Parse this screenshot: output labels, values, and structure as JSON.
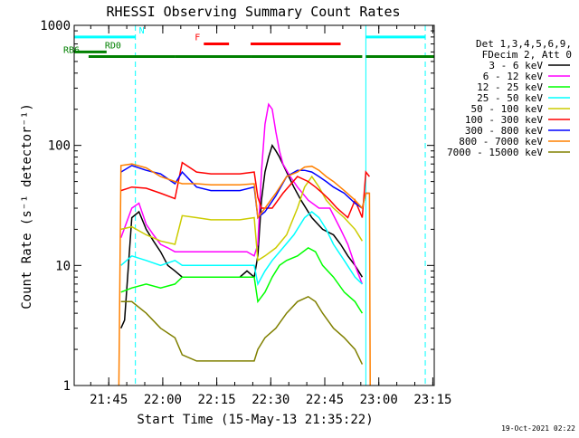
{
  "chart_data": {
    "type": "line",
    "title": "RHESSI Observing Summary Count Rates",
    "xlabel": "Start Time (15-May-13 21:35:22)",
    "ylabel": "Count Rate (s⁻¹ detector⁻¹)",
    "x_unit": "minutes after 21:35:22",
    "xlim": [
      0,
      100
    ],
    "ylim": [
      1,
      1000
    ],
    "y_scale": "log",
    "x_ticks": [
      {
        "x": 9.6,
        "label": "21:45"
      },
      {
        "x": 24.6,
        "label": "22:00"
      },
      {
        "x": 39.6,
        "label": "22:15"
      },
      {
        "x": 54.6,
        "label": "22:30"
      },
      {
        "x": 69.6,
        "label": "22:45"
      },
      {
        "x": 84.6,
        "label": "23:00"
      },
      {
        "x": 99.6,
        "label": "23:15"
      }
    ],
    "y_ticks": [
      {
        "y": 1,
        "label": "1"
      },
      {
        "y": 10,
        "label": "10"
      },
      {
        "y": 100,
        "label": "100"
      },
      {
        "y": 1000,
        "label": "1000"
      }
    ],
    "legend_position": "right",
    "legend_header": [
      "Det 1,3,4,5,6,9,",
      "FDecim 2, Att 0"
    ],
    "series": [
      {
        "name": "3 - 6 keV",
        "color": "#000000",
        "x": [
          13,
          14,
          16,
          18,
          20,
          22,
          24,
          26,
          28,
          30,
          34,
          38,
          42,
          46,
          48,
          50,
          51,
          52,
          53,
          54,
          55,
          56,
          57,
          59,
          61,
          63,
          66,
          69,
          72,
          74,
          76,
          78,
          80
        ],
        "y": [
          3,
          3.5,
          25,
          28,
          20,
          16,
          13,
          10,
          9,
          8,
          8,
          8,
          8,
          8,
          9,
          8,
          12,
          35,
          60,
          80,
          100,
          90,
          80,
          60,
          45,
          35,
          25,
          20,
          18,
          15,
          12,
          10,
          8
        ]
      },
      {
        "name": "6 - 12 keV",
        "color": "#ff00ff",
        "x": [
          13,
          16,
          18,
          20,
          22,
          24,
          26,
          28,
          30,
          34,
          38,
          42,
          46,
          48,
          50,
          51,
          52,
          53,
          54,
          55,
          56,
          57,
          58,
          60,
          62,
          65,
          68,
          71,
          74,
          76,
          78,
          80
        ],
        "y": [
          17,
          30,
          33,
          22,
          18,
          15,
          14,
          13,
          13,
          13,
          13,
          13,
          13,
          13,
          12,
          15,
          60,
          150,
          220,
          200,
          130,
          90,
          70,
          55,
          45,
          35,
          30,
          30,
          20,
          15,
          10,
          7
        ]
      },
      {
        "name": "12 - 25 keV",
        "color": "#00ff00",
        "x": [
          13,
          16,
          20,
          24,
          28,
          30,
          34,
          38,
          42,
          46,
          50,
          51,
          53,
          55,
          57,
          59,
          62,
          65,
          67,
          69,
          72,
          75,
          78,
          80
        ],
        "y": [
          6,
          6.5,
          7,
          6.5,
          7,
          8,
          8,
          8,
          8,
          8,
          8,
          5,
          6,
          8,
          10,
          11,
          12,
          14,
          13,
          10,
          8,
          6,
          5,
          4
        ]
      },
      {
        "name": "25 - 50 keV",
        "color": "#00ffff",
        "x": [
          13,
          16,
          20,
          24,
          28,
          30,
          34,
          38,
          42,
          46,
          50,
          51,
          53,
          55,
          58,
          61,
          64,
          66,
          68,
          70,
          72,
          75,
          78,
          80
        ],
        "y": [
          10,
          12,
          11,
          10,
          11,
          10,
          10,
          10,
          10,
          10,
          10,
          7,
          9,
          11,
          14,
          18,
          25,
          28,
          25,
          20,
          15,
          11,
          8,
          7
        ]
      },
      {
        "name": "50 - 100 keV",
        "color": "#cccc00",
        "x": [
          13,
          16,
          20,
          24,
          28,
          30,
          34,
          38,
          42,
          46,
          50,
          51,
          53,
          56,
          59,
          62,
          64,
          66,
          68,
          70,
          72,
          75,
          78,
          80
        ],
        "y": [
          20,
          21,
          18,
          16,
          15,
          26,
          25,
          24,
          24,
          24,
          25,
          11,
          12,
          14,
          18,
          30,
          45,
          55,
          45,
          35,
          30,
          25,
          20,
          16
        ]
      },
      {
        "name": "100 - 300 keV",
        "color": "#ff0000",
        "x": [
          13,
          16,
          20,
          24,
          28,
          30,
          34,
          38,
          42,
          46,
          50,
          51,
          52,
          55,
          58,
          62,
          65,
          67,
          69,
          71,
          73,
          76,
          78,
          80,
          81,
          82
        ],
        "y": [
          42,
          45,
          44,
          40,
          36,
          72,
          60,
          58,
          58,
          58,
          60,
          37,
          30,
          30,
          40,
          55,
          50,
          45,
          40,
          35,
          30,
          25,
          35,
          25,
          60,
          55
        ]
      },
      {
        "name": "300 - 800 keV",
        "color": "#0000ff",
        "x": [
          13,
          16,
          20,
          24,
          28,
          30,
          34,
          38,
          42,
          46,
          50,
          51,
          53,
          56,
          59,
          62,
          64,
          66,
          68,
          70,
          72,
          75,
          78,
          80,
          81,
          82
        ],
        "y": [
          60,
          68,
          62,
          58,
          48,
          60,
          45,
          42,
          42,
          42,
          45,
          25,
          28,
          38,
          55,
          62,
          62,
          60,
          55,
          50,
          45,
          40,
          33,
          30,
          40,
          40
        ]
      },
      {
        "name": "800 - 7000 keV",
        "color": "#ff8000",
        "x": [
          12.4,
          13,
          16,
          20,
          24,
          28,
          30,
          34,
          38,
          42,
          46,
          50,
          51,
          53,
          56,
          59,
          62,
          64,
          66,
          68,
          70,
          72,
          75,
          78,
          80,
          81,
          82,
          82.2
        ],
        "y": [
          1,
          68,
          70,
          65,
          55,
          50,
          48,
          48,
          47,
          47,
          47,
          48,
          25,
          30,
          40,
          55,
          60,
          66,
          67,
          62,
          55,
          50,
          42,
          35,
          30,
          40,
          40,
          1
        ]
      },
      {
        "name": "7000 - 15000 keV",
        "color": "#808000",
        "x": [
          13,
          16,
          20,
          24,
          28,
          30,
          34,
          38,
          42,
          46,
          50,
          51,
          53,
          56,
          59,
          62,
          65,
          67,
          69,
          72,
          75,
          78,
          80
        ],
        "y": [
          5,
          5,
          4,
          3,
          2.5,
          1.8,
          1.6,
          1.6,
          1.6,
          1.6,
          1.6,
          2,
          2.5,
          3,
          4,
          5,
          5.5,
          5,
          4,
          3,
          2.5,
          2,
          1.5
        ]
      }
    ],
    "annotations": [
      {
        "text": "N",
        "color": "#00ffff",
        "x_start": 0,
        "x_end": 17,
        "x_start2": 81,
        "x_end2": 97.5,
        "level": 800
      },
      {
        "text": "F",
        "color": "#ff0000",
        "x_start": 36,
        "x_end": 43,
        "x_start2": 49,
        "x_end2": 74,
        "level": 700
      },
      {
        "text": "RD0",
        "color": "#008000",
        "x_start": 0,
        "x_end": 9,
        "level": 600
      },
      {
        "text": "RB6",
        "color": "#008000",
        "x_start": 4,
        "x_end": 28,
        "x_start2": 28,
        "x_end2": 49,
        "x_start3": 49,
        "x_end3": 80,
        "x_start4": 81,
        "x_end4": 100,
        "level": 550
      }
    ],
    "vertical_lines": [
      {
        "x": 0,
        "color": "#00ffff",
        "style": "solid"
      },
      {
        "x": 17,
        "color": "#00ffff",
        "style": "dashed"
      },
      {
        "x": 81,
        "color": "#00ffff",
        "style": "solid"
      },
      {
        "x": 97.5,
        "color": "#00ffff",
        "style": "dashed"
      }
    ]
  },
  "footer": {
    "timestamp": "19-Oct-2021 02:22"
  }
}
